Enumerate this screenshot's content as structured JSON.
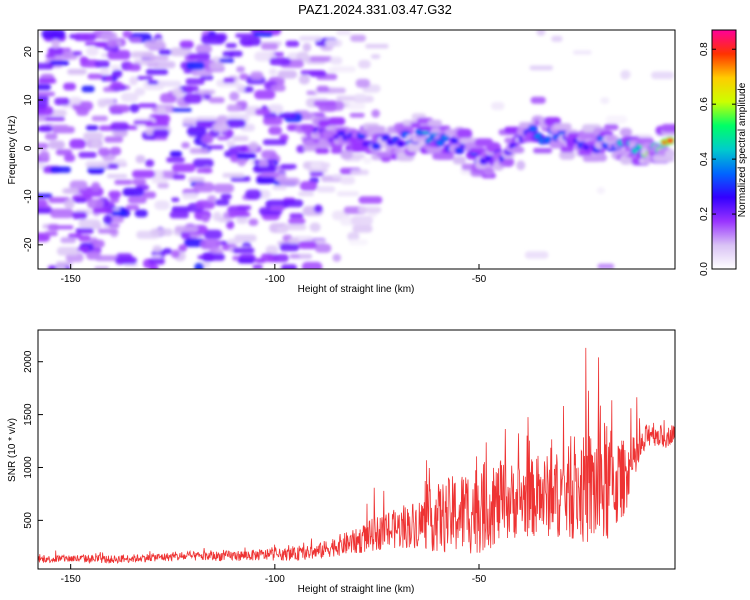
{
  "title": "PAZ1.2024.331.03.47.G32",
  "colors": {
    "snr_line": "#ee3333",
    "colormap": [
      "#ffffff",
      "#d9c2f5",
      "#9933ff",
      "#3300ff",
      "#0066ff",
      "#00cccc",
      "#00ff66",
      "#ccff00",
      "#ffcc00",
      "#ff3300",
      "#ff0099"
    ]
  },
  "chart_data": [
    {
      "type": "heatmap",
      "title": "PAZ1.2024.331.03.47.G32",
      "xlabel": "Height of straight line (km)",
      "ylabel": "Frequency (Hz)",
      "xlim": [
        -158,
        -2
      ],
      "ylim": [
        -25,
        24.5
      ],
      "x_ticks": [
        -150,
        -100,
        -50
      ],
      "y_ticks": [
        -20,
        -10,
        0,
        10,
        20
      ],
      "colorbar": {
        "label": "Normalized spectral amplitude",
        "range": [
          0,
          0.87
        ],
        "ticks": [
          0.0,
          0.2,
          0.4,
          0.6,
          0.8
        ]
      },
      "signal_track": [
        {
          "height": -88,
          "freq": 2.5,
          "amp": 0.25
        },
        {
          "height": -80,
          "freq": 2.0,
          "amp": 0.3
        },
        {
          "height": -72,
          "freq": 1.0,
          "amp": 0.3
        },
        {
          "height": -64,
          "freq": 2.5,
          "amp": 0.4
        },
        {
          "height": -58,
          "freq": 1.5,
          "amp": 0.38
        },
        {
          "height": -52,
          "freq": -1.0,
          "amp": 0.35
        },
        {
          "height": -46,
          "freq": -3.0,
          "amp": 0.3
        },
        {
          "height": -40,
          "freq": 3.0,
          "amp": 0.32
        },
        {
          "height": -32,
          "freq": 2.5,
          "amp": 0.4
        },
        {
          "height": -24,
          "freq": 0.5,
          "amp": 0.3
        },
        {
          "height": -16,
          "freq": 1.5,
          "amp": 0.45
        },
        {
          "height": -10,
          "freq": -0.5,
          "amp": 0.65
        },
        {
          "height": -5,
          "freq": 0.5,
          "amp": 0.8
        },
        {
          "height": -2,
          "freq": 1.5,
          "amp": 0.87
        }
      ]
    },
    {
      "type": "line",
      "xlabel": "Height of straight line (km)",
      "ylabel": "SNR (10 * v/v)",
      "xlim": [
        -158,
        -2
      ],
      "ylim": [
        40,
        2300
      ],
      "x_ticks": [
        -150,
        -100,
        -50
      ],
      "y_ticks": [
        500,
        1000,
        1500,
        2000
      ],
      "series": [
        {
          "x": [
            -158,
            -150,
            -140,
            -130,
            -120,
            -110,
            -100,
            -95,
            -90,
            -85,
            -80,
            -75,
            -70,
            -65,
            -60,
            -55,
            -50,
            -45,
            -40,
            -35,
            -30,
            -25,
            -20,
            -15,
            -12,
            -10,
            -8,
            -6,
            -4,
            -2
          ],
          "y_base": [
            130,
            140,
            130,
            150,
            160,
            165,
            175,
            180,
            200,
            260,
            300,
            380,
            420,
            470,
            520,
            560,
            620,
            660,
            700,
            720,
            750,
            780,
            820,
            880,
            1050,
            1200,
            1350,
            1300,
            1280,
            1350
          ],
          "y_amplitude": [
            60,
            70,
            70,
            70,
            80,
            90,
            100,
            110,
            130,
            180,
            220,
            300,
            350,
            420,
            600,
            720,
            800,
            700,
            650,
            700,
            750,
            900,
            1200,
            700,
            450,
            250,
            250,
            200,
            180,
            150
          ]
        }
      ]
    }
  ]
}
